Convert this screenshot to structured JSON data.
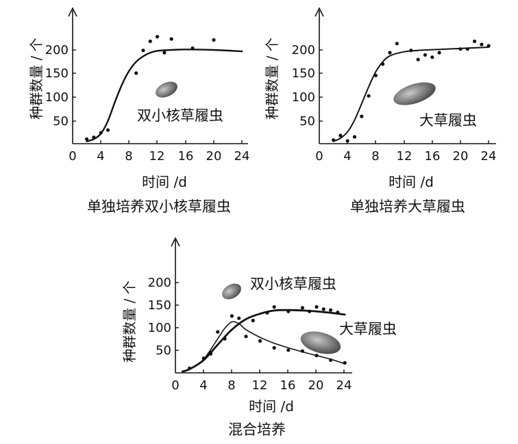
{
  "chart_data": [
    {
      "type": "line",
      "caption": "单独培养双小核草履虫",
      "xlabel": "时间 /d",
      "ylabel": "种群数量 / 个",
      "xticks": [
        "0",
        "4",
        "8",
        "12",
        "16",
        "20",
        "24"
      ],
      "yticks": [
        "50",
        "100",
        "150",
        "200"
      ],
      "xlim": [
        0,
        25
      ],
      "ylim": [
        0,
        240
      ],
      "series": [
        {
          "name": "双小核草履虫",
          "curve": [
            [
              2,
              5
            ],
            [
              3,
              10
            ],
            [
              4,
              22
            ],
            [
              5,
              50
            ],
            [
              6,
              92
            ],
            [
              7,
              130
            ],
            [
              8,
              160
            ],
            [
              9,
              180
            ],
            [
              10,
              192
            ],
            [
              11,
              200
            ],
            [
              12,
              204
            ],
            [
              14,
              206
            ],
            [
              16,
              207
            ],
            [
              20,
              206
            ],
            [
              24,
              203
            ]
          ],
          "points": [
            [
              2,
              10
            ],
            [
              3,
              14
            ],
            [
              4,
              24
            ],
            [
              5,
              30
            ],
            [
              9,
              155
            ],
            [
              10,
              205
            ],
            [
              11,
              225
            ],
            [
              12,
              235
            ],
            [
              13,
              200
            ],
            [
              14,
              230
            ],
            [
              17,
              210
            ],
            [
              20,
              228
            ]
          ]
        }
      ]
    },
    {
      "type": "line",
      "caption": "单独培养大草履虫",
      "xlabel": "时间 /d",
      "ylabel": "种群数量 / 个",
      "xticks": [
        "0",
        "4",
        "8",
        "12",
        "16",
        "20",
        "24"
      ],
      "yticks": [
        "50",
        "100",
        "150",
        "200"
      ],
      "xlim": [
        0,
        25
      ],
      "ylim": [
        0,
        240
      ],
      "series": [
        {
          "name": "大草履虫",
          "curve": [
            [
              2,
              5
            ],
            [
              3,
              12
            ],
            [
              4,
              26
            ],
            [
              5,
              52
            ],
            [
              6,
              88
            ],
            [
              7,
              125
            ],
            [
              8,
              158
            ],
            [
              9,
              180
            ],
            [
              10,
              193
            ],
            [
              12,
              202
            ],
            [
              14,
              205
            ],
            [
              18,
              208
            ],
            [
              24,
              212
            ]
          ],
          "points": [
            [
              2,
              8
            ],
            [
              3,
              18
            ],
            [
              4,
              6
            ],
            [
              5,
              15
            ],
            [
              6,
              60
            ],
            [
              7,
              105
            ],
            [
              8,
              150
            ],
            [
              9,
              175
            ],
            [
              10,
              200
            ],
            [
              11,
              220
            ],
            [
              13,
              205
            ],
            [
              14,
              185
            ],
            [
              15,
              195
            ],
            [
              16,
              190
            ],
            [
              17,
              200
            ],
            [
              20,
              208
            ],
            [
              21,
              208
            ],
            [
              22,
              225
            ],
            [
              23,
              218
            ],
            [
              24,
              215
            ]
          ]
        }
      ]
    },
    {
      "type": "line",
      "caption": "混合培养",
      "xlabel": "时间 /d",
      "ylabel": "种群数量 / 个",
      "xticks": [
        "0",
        "4",
        "8",
        "12",
        "16",
        "20",
        "24"
      ],
      "yticks": [
        "50",
        "100",
        "150",
        "200"
      ],
      "xlim": [
        0,
        25
      ],
      "ylim": [
        0,
        240
      ],
      "series": [
        {
          "name": "双小核草履虫",
          "label": "双小核草履虫",
          "curve": [
            [
              1,
              3
            ],
            [
              2,
              8
            ],
            [
              4,
              28
            ],
            [
              6,
              62
            ],
            [
              8,
              95
            ],
            [
              10,
              118
            ],
            [
              12,
              130
            ],
            [
              14,
              137
            ],
            [
              16,
              138
            ],
            [
              18,
              137
            ],
            [
              20,
              135
            ],
            [
              22,
              132
            ],
            [
              24,
              128
            ]
          ],
          "points": [
            [
              2,
              10
            ],
            [
              4,
              32
            ],
            [
              5,
              42
            ],
            [
              6,
              90
            ],
            [
              9,
              120
            ],
            [
              11,
              115
            ],
            [
              13,
              132
            ],
            [
              14,
              145
            ],
            [
              16,
              135
            ],
            [
              18,
              143
            ],
            [
              19,
              135
            ],
            [
              20,
              145
            ],
            [
              21,
              140
            ],
            [
              22,
              138
            ],
            [
              23,
              133
            ]
          ]
        },
        {
          "name": "大草履虫",
          "label": "大草履虫",
          "curve": [
            [
              1,
              3
            ],
            [
              2,
              8
            ],
            [
              4,
              30
            ],
            [
              6,
              75
            ],
            [
              7,
              98
            ],
            [
              8,
              112
            ],
            [
              9,
              108
            ],
            [
              10,
              95
            ],
            [
              12,
              78
            ],
            [
              14,
              65
            ],
            [
              16,
              55
            ],
            [
              18,
              46
            ],
            [
              20,
              38
            ],
            [
              22,
              30
            ],
            [
              24,
              20
            ]
          ],
          "points": [
            [
              5,
              45
            ],
            [
              7,
              75
            ],
            [
              8,
              125
            ],
            [
              10,
              80
            ],
            [
              12,
              70
            ],
            [
              14,
              55
            ],
            [
              16,
              50
            ],
            [
              18,
              48
            ],
            [
              20,
              38
            ],
            [
              22,
              28
            ],
            [
              24,
              22
            ]
          ]
        }
      ]
    }
  ]
}
